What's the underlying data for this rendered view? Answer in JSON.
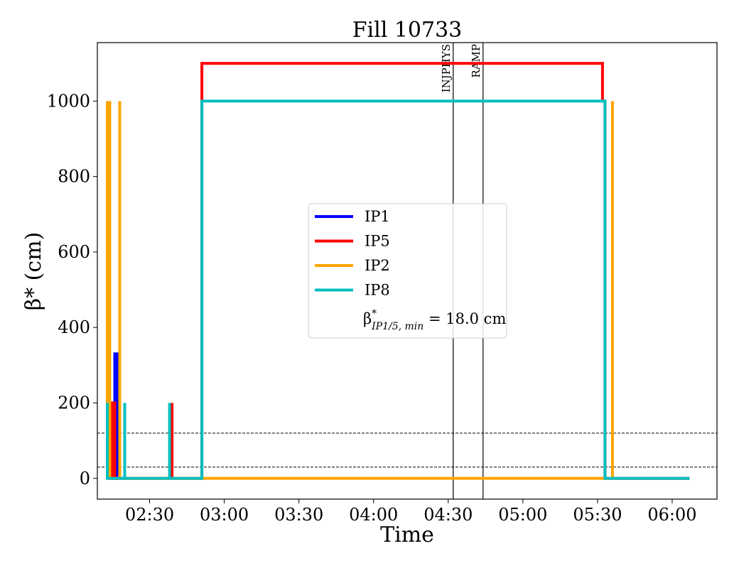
{
  "chart_data": {
    "type": "line",
    "title": "Fill 10733",
    "xlabel": "Time",
    "ylabel": "β* (cm)",
    "x_axis_type": "time",
    "xlim": [
      "02:09",
      "06:18"
    ],
    "ylim": [
      -55,
      1155
    ],
    "x_ticks": [
      "02:30",
      "03:00",
      "03:30",
      "04:00",
      "04:30",
      "05:00",
      "05:30",
      "06:00"
    ],
    "y_ticks": [
      0,
      200,
      400,
      600,
      800,
      1000
    ],
    "grid": false,
    "legend_position": "center",
    "legend_note": {
      "prefix": "β",
      "sup": "*",
      "sub": "IP1/5, min",
      "suffix": " = 18.0 cm"
    },
    "hlines": [
      {
        "y": 30,
        "style": "dashed",
        "color": "#000000"
      },
      {
        "y": 120,
        "style": "dashed",
        "color": "#000000"
      }
    ],
    "vlines": [
      {
        "x": "04:32",
        "label": "INJPHYS",
        "color": "#000000"
      },
      {
        "x": "04:44",
        "label": "RAMP",
        "color": "#000000"
      }
    ],
    "series": [
      {
        "name": "IP1",
        "color": "#0000ff",
        "points": [
          [
            "02:14",
            0
          ],
          [
            "02:15",
            0
          ],
          [
            "02:15",
            200
          ],
          [
            "02:15",
            0
          ],
          [
            "02:16",
            0
          ],
          [
            "02:16",
            280
          ],
          [
            "02:16",
            330
          ],
          [
            "02:17",
            330
          ],
          [
            "02:17",
            0
          ],
          [
            "02:20",
            0
          ]
        ]
      },
      {
        "name": "IP5",
        "color": "#ff0000",
        "points": [
          [
            "02:14",
            0
          ],
          [
            "02:15",
            0
          ],
          [
            "02:15",
            200
          ],
          [
            "02:16",
            200
          ],
          [
            "02:16",
            0
          ],
          [
            "02:18",
            0
          ],
          [
            "02:18",
            420
          ],
          [
            "02:18",
            0
          ],
          [
            "02:39",
            0
          ],
          [
            "02:39",
            200
          ],
          [
            "02:39",
            0
          ],
          [
            "02:51",
            0
          ],
          [
            "02:51",
            1100
          ],
          [
            "05:32",
            1100
          ],
          [
            "05:32",
            1000
          ],
          [
            "05:33",
            1000
          ],
          [
            "05:33",
            0
          ],
          [
            "06:07",
            0
          ]
        ]
      },
      {
        "name": "IP2",
        "color": "#ffa500",
        "points": [
          [
            "02:13",
            1000
          ],
          [
            "02:13",
            0
          ],
          [
            "02:14",
            0
          ],
          [
            "02:14",
            1000
          ],
          [
            "02:14",
            0
          ],
          [
            "02:18",
            0
          ],
          [
            "02:18",
            1000
          ],
          [
            "02:18",
            0
          ],
          [
            "05:36",
            0
          ],
          [
            "05:36",
            1000
          ],
          [
            "05:36",
            0
          ]
        ]
      },
      {
        "name": "IP8",
        "color": "#00bfbf",
        "points": [
          [
            "02:13",
            200
          ],
          [
            "02:13",
            0
          ],
          [
            "02:20",
            0
          ],
          [
            "02:20",
            200
          ],
          [
            "02:20",
            0
          ],
          [
            "02:38",
            0
          ],
          [
            "02:38",
            200
          ],
          [
            "02:38",
            0
          ],
          [
            "02:51",
            0
          ],
          [
            "02:51",
            1000
          ],
          [
            "05:33",
            1000
          ],
          [
            "05:33",
            0
          ],
          [
            "06:07",
            0
          ]
        ]
      }
    ]
  }
}
